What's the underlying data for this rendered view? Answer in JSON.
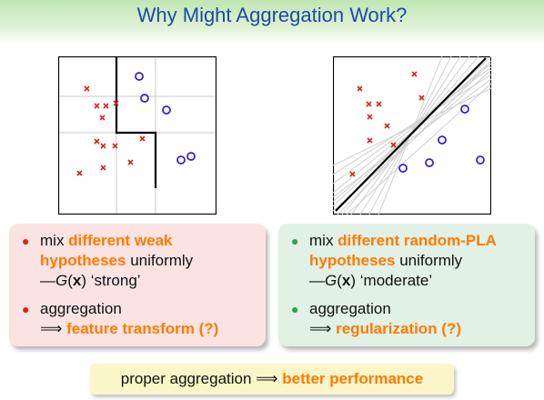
{
  "title": "Why Might Aggregation Work?",
  "left_box": {
    "b1_l1_pre": "mix ",
    "b1_l1_hl": "different weak",
    "b1_l2_hl": "hypotheses",
    "b1_l2_post": " uniformly",
    "b1_l3_dash": "—",
    "b1_l3_G": "G",
    "b1_l3_x": "x",
    "b1_l3_post": "‘strong’",
    "b2_l1": "aggregation",
    "b2_l2_arrow": "⟹",
    "b2_l2_hl": "feature transform (?)"
  },
  "right_box": {
    "b1_l1_pre": "mix ",
    "b1_l1_hl": "different random-PLA",
    "b1_l2_hl": "hypotheses",
    "b1_l2_post": " uniformly",
    "b1_l3_dash": "—",
    "b1_l3_G": "G",
    "b1_l3_x": "x",
    "b1_l3_post": "‘moderate’",
    "b2_l1": "aggregation",
    "b2_l2_arrow": "⟹",
    "b2_l2_hl": "regularization (?)"
  },
  "bottom": {
    "pre": "proper aggregation ",
    "arrow": "⟹",
    "hl": "better performance"
  },
  "colors": {
    "title": "#1f4aa8",
    "x_mark": "#d8241d",
    "o_mark": "#3a1fd6",
    "highlight": "#ff7a00",
    "left_box_bg": "#fbe3e2",
    "right_box_bg": "#e1f1e6",
    "bottom_bg": "#fbf6c9"
  },
  "icons": {
    "x_mark": "cross-marker",
    "o_mark": "circle-marker",
    "bullet": "bullet-dot-icon"
  }
}
